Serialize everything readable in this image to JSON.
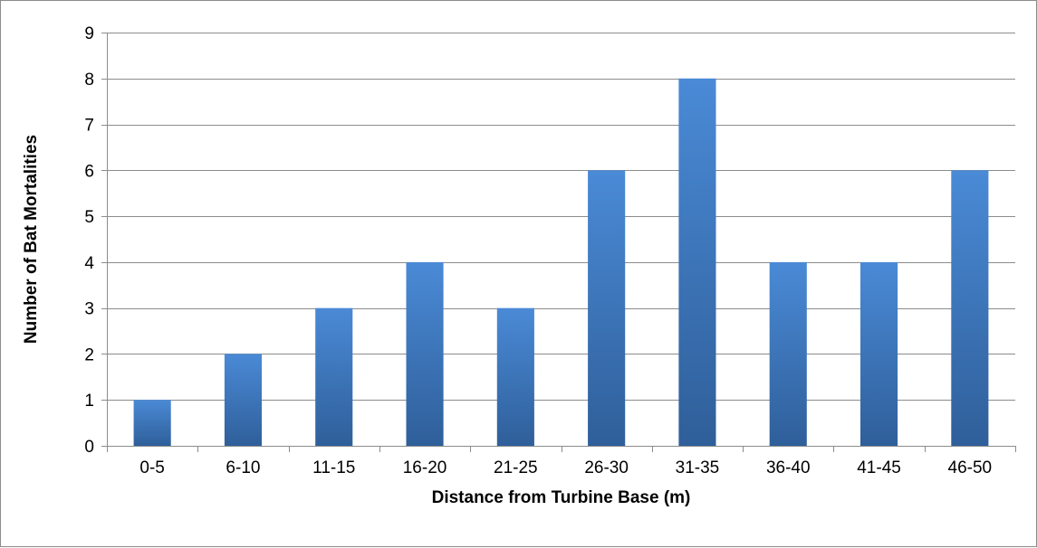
{
  "chart_data": {
    "type": "bar",
    "title": "",
    "xlabel": "Distance from Turbine Base (m)",
    "ylabel": "Number of Bat Mortalities",
    "categories": [
      "0-5",
      "6-10",
      "11-15",
      "16-20",
      "21-25",
      "26-30",
      "31-35",
      "36-40",
      "41-45",
      "46-50"
    ],
    "values": [
      1,
      2,
      3,
      4,
      3,
      6,
      8,
      4,
      4,
      6
    ],
    "ylim": [
      0,
      9
    ],
    "yticks": [
      "0",
      "1",
      "2",
      "3",
      "4",
      "5",
      "6",
      "7",
      "8",
      "9"
    ],
    "grid": true,
    "legend": "none",
    "colors": {
      "bar_light": "#4a8ad6",
      "bar_dark": "#2f5f9a",
      "grid": "#8c8c8c",
      "axis": "#8c8c8c"
    }
  }
}
